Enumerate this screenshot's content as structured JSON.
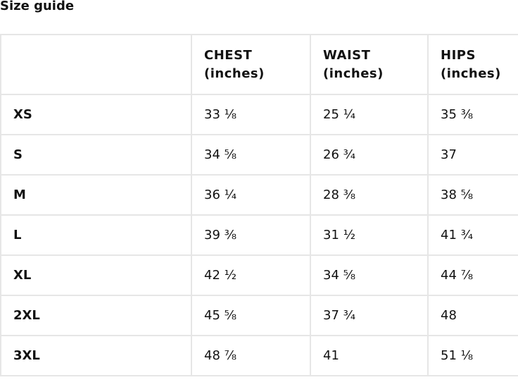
{
  "title": "Size guide",
  "headers": [
    "",
    "CHEST (inches)",
    "WAIST (inches)",
    "HIPS (inches)"
  ],
  "header_lines": [
    [
      "",
      ""
    ],
    [
      "CHEST",
      "(inches)"
    ],
    [
      "WAIST",
      "(inches)"
    ],
    [
      "HIPS",
      "(inches)"
    ]
  ],
  "rows": [
    {
      "size": "XS",
      "chest": "33 ⅛",
      "waist": "25 ¼",
      "hips": "35 ⅜"
    },
    {
      "size": "S",
      "chest": "34 ⅝",
      "waist": "26 ¾",
      "hips": "37"
    },
    {
      "size": "M",
      "chest": "36 ¼",
      "waist": "28 ⅜",
      "hips": "38 ⅝"
    },
    {
      "size": "L",
      "chest": "39 ⅜",
      "waist": "31 ½",
      "hips": "41 ¾"
    },
    {
      "size": "XL",
      "chest": "42 ½",
      "waist": "34 ⅝",
      "hips": "44 ⅞"
    },
    {
      "size": "2XL",
      "chest": "45 ⅝",
      "waist": "37 ¾",
      "hips": "48"
    },
    {
      "size": "3XL",
      "chest": "48 ⅞",
      "waist": "41",
      "hips": "51 ⅛"
    }
  ]
}
